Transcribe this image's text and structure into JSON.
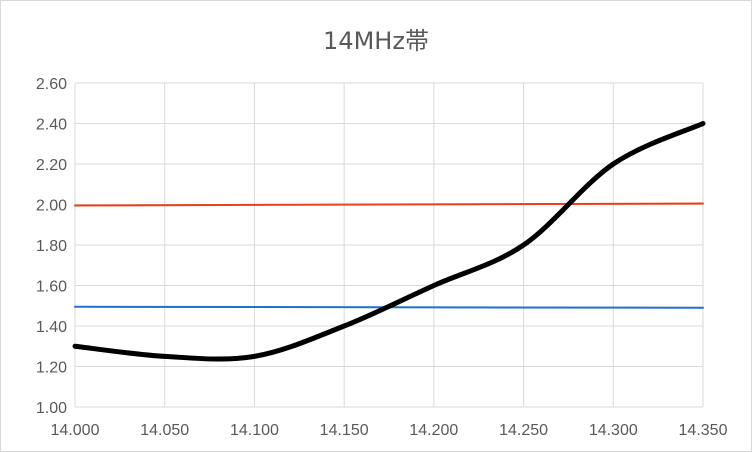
{
  "chart_data": {
    "type": "line",
    "title": "14MHz帯",
    "xlabel": "",
    "ylabel": "",
    "xlim": [
      14.0,
      14.35
    ],
    "ylim": [
      1.0,
      2.6
    ],
    "x_ticks": [
      "14.000",
      "14.050",
      "14.100",
      "14.150",
      "14.200",
      "14.250",
      "14.300",
      "14.350"
    ],
    "y_ticks": [
      "1.00",
      "1.20",
      "1.40",
      "1.60",
      "1.80",
      "2.00",
      "2.20",
      "2.40",
      "2.60"
    ],
    "x_tick_values": [
      14.0,
      14.05,
      14.1,
      14.15,
      14.2,
      14.25,
      14.3,
      14.35
    ],
    "y_tick_values": [
      1.0,
      1.2,
      1.4,
      1.6,
      1.8,
      2.0,
      2.2,
      2.4,
      2.6
    ],
    "grid": true,
    "legend": "none",
    "series": [
      {
        "color": "#000000",
        "smooth": true,
        "x": [
          14.0,
          14.05,
          14.1,
          14.15,
          14.2,
          14.25,
          14.3,
          14.35
        ],
        "y": [
          1.3,
          1.25,
          1.25,
          1.4,
          1.6,
          1.8,
          2.2,
          2.4
        ]
      },
      {
        "color": "#e8401c",
        "smooth": false,
        "x": [
          14.0,
          14.35
        ],
        "y": [
          1.995,
          2.005
        ]
      },
      {
        "color": "#1f6fd1",
        "smooth": false,
        "x": [
          14.0,
          14.35
        ],
        "y": [
          1.495,
          1.49
        ]
      }
    ]
  }
}
